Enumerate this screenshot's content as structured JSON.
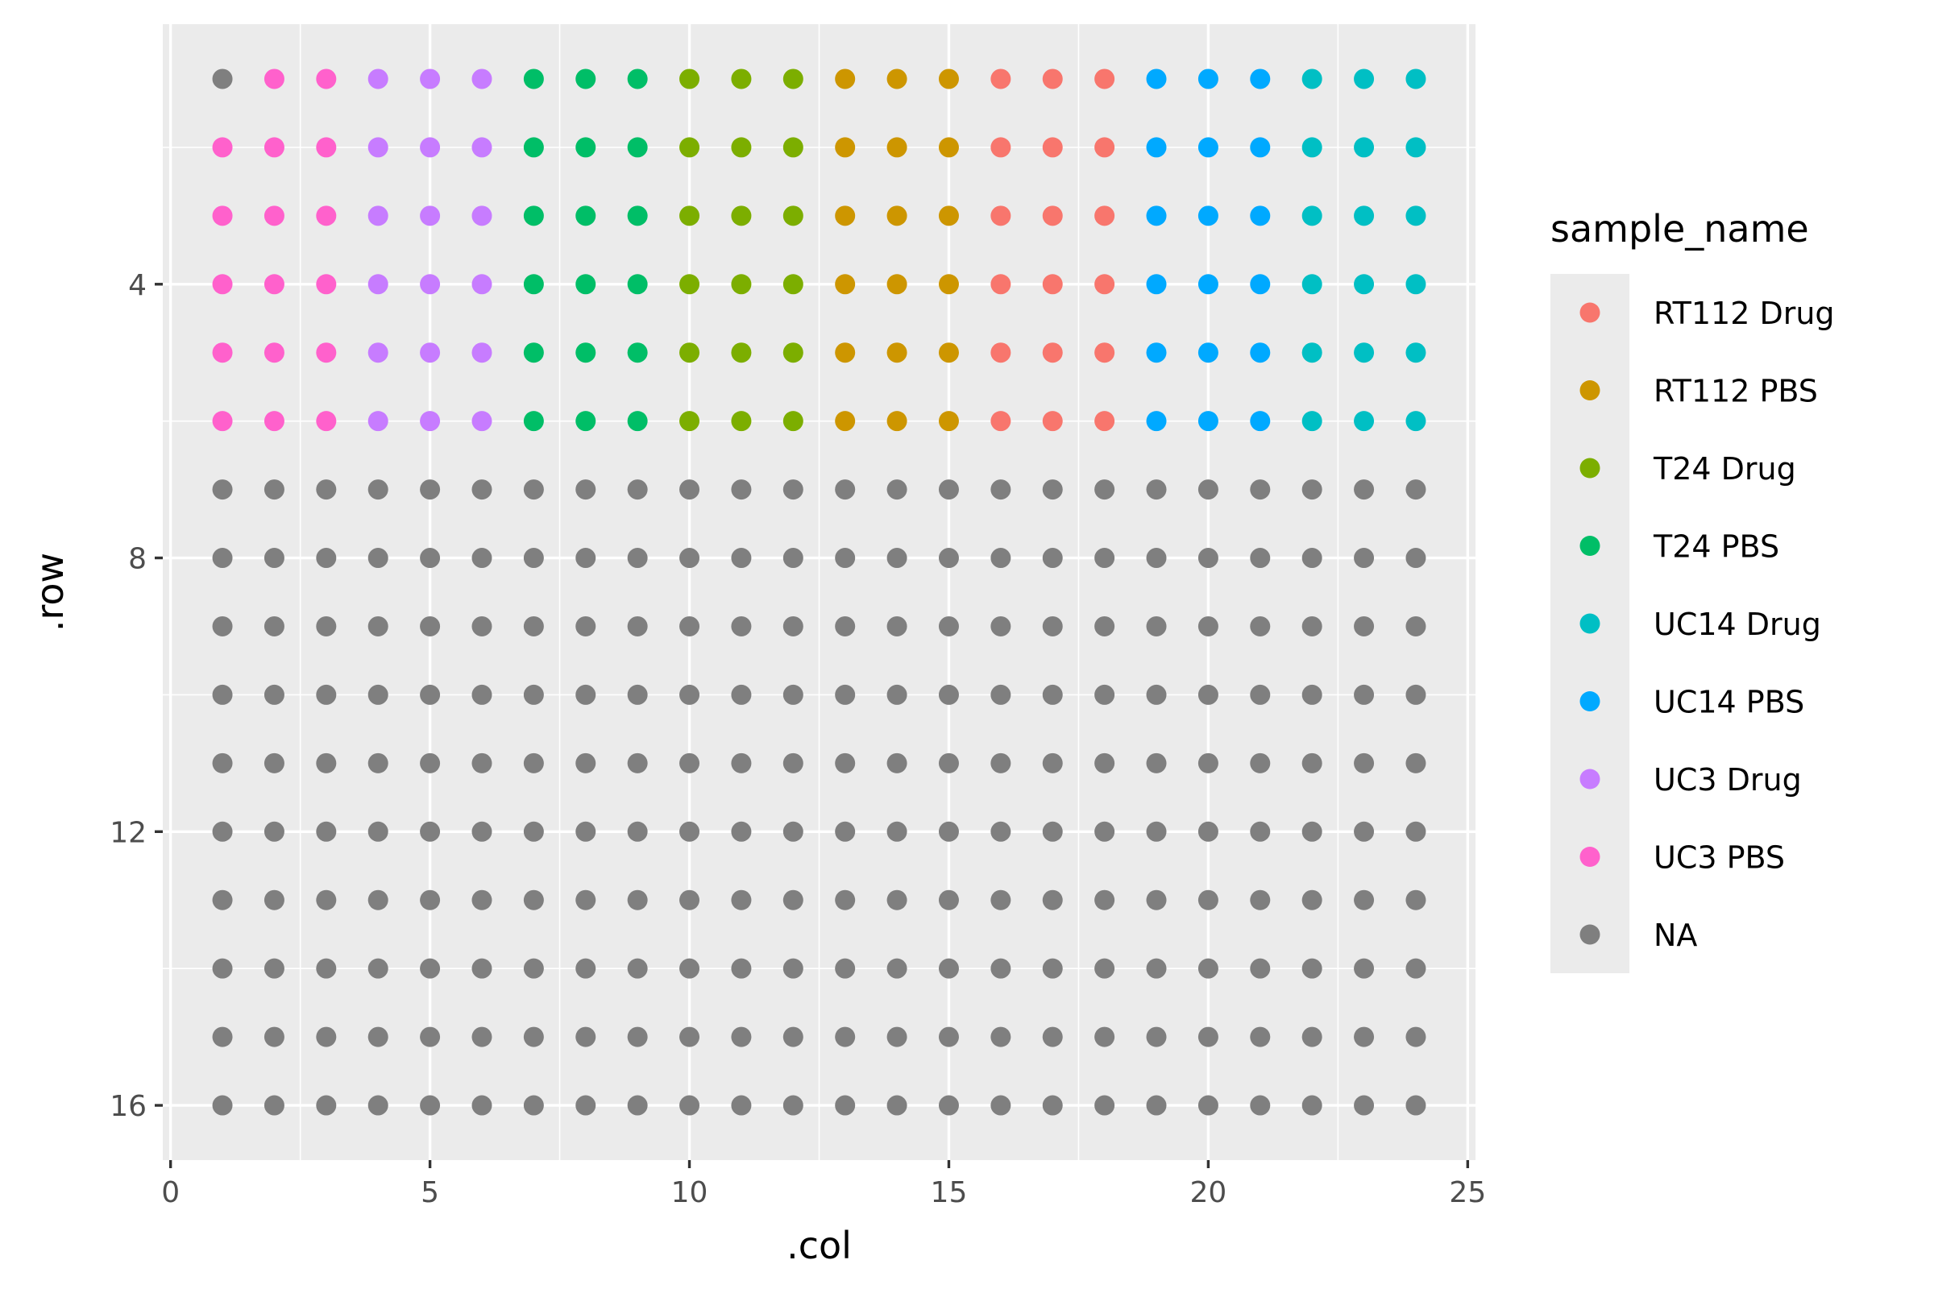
{
  "chart_data": {
    "type": "scatter",
    "xlabel": ".col",
    "ylabel": ".row",
    "xlim": [
      -0.15,
      25.15
    ],
    "ylim": [
      16.8,
      0.2
    ],
    "y_reversed": true,
    "xticks": [
      0,
      5,
      10,
      15,
      20,
      25
    ],
    "yticks": [
      4,
      8,
      12,
      16
    ],
    "grid": true,
    "legend_position": "right",
    "legend_title": "sample_name",
    "legend": [
      {
        "label": "RT112 Drug",
        "color": "#F8766D"
      },
      {
        "label": "RT112 PBS",
        "color": "#CD9600"
      },
      {
        "label": "T24 Drug",
        "color": "#7CAE00"
      },
      {
        "label": "T24 PBS",
        "color": "#00BE67"
      },
      {
        "label": "UC14 Drug",
        "color": "#00BFC4"
      },
      {
        "label": "UC14 PBS",
        "color": "#00A9FF"
      },
      {
        "label": "UC3 Drug",
        "color": "#C77CFF"
      },
      {
        "label": "UC3 PBS",
        "color": "#FF61CC"
      },
      {
        "label": "NA",
        "color": "#7F7F7F"
      }
    ],
    "plate": {
      "rows": 16,
      "cols": 24,
      "column_groups": [
        {
          "cols": [
            1
          ],
          "sample": "NA",
          "note_row1_only": true
        },
        {
          "cols": [
            2,
            3
          ],
          "sample": "UC3 PBS"
        },
        {
          "cols": [
            4,
            5,
            6
          ],
          "sample": "UC3 Drug"
        },
        {
          "cols": [
            7,
            8,
            9
          ],
          "sample": "T24 PBS"
        },
        {
          "cols": [
            10,
            11,
            12
          ],
          "sample": "T24 Drug"
        },
        {
          "cols": [
            13,
            14,
            15
          ],
          "sample": "RT112 PBS"
        },
        {
          "cols": [
            16,
            17,
            18
          ],
          "sample": "RT112 Drug"
        },
        {
          "cols": [
            19,
            20,
            21
          ],
          "sample": "UC14 PBS"
        },
        {
          "cols": [
            22,
            23,
            24
          ],
          "sample": "UC14 Drug"
        }
      ],
      "sample_rows": [
        1,
        6
      ],
      "col1_rows2to6": "UC3 PBS",
      "other_rows": "NA"
    }
  }
}
